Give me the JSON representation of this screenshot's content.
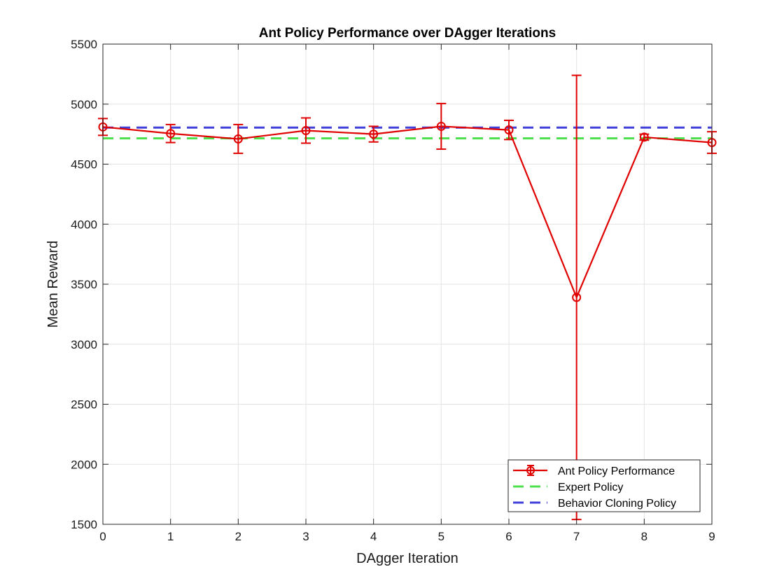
{
  "chart_data": {
    "type": "line",
    "title": "Ant Policy Performance over DAgger Iterations",
    "xlabel": "DAgger Iteration",
    "ylabel": "Mean Reward",
    "xlim": [
      0,
      9
    ],
    "ylim": [
      1500,
      5500
    ],
    "xticks": [
      0,
      1,
      2,
      3,
      4,
      5,
      6,
      7,
      8,
      9
    ],
    "yticks": [
      1500,
      2000,
      2500,
      3000,
      3500,
      4000,
      4500,
      5000,
      5500
    ],
    "grid": true,
    "legend_position": "bottom-right",
    "series": [
      {
        "name": "Ant Policy Performance",
        "style": "solid line with circle markers and error bars",
        "color": "#e00000",
        "x": [
          0,
          1,
          2,
          3,
          4,
          5,
          6,
          7,
          8,
          9
        ],
        "y": [
          4810,
          4755,
          4710,
          4780,
          4750,
          4815,
          4785,
          3390,
          4725,
          4680
        ],
        "error": [
          70,
          75,
          120,
          105,
          65,
          190,
          80,
          1850,
          25,
          90
        ]
      },
      {
        "name": "Expert Policy",
        "style": "dashed",
        "color": "#4ce04c",
        "x": [
          0,
          9
        ],
        "y": [
          4715,
          4715
        ]
      },
      {
        "name": "Behavior Cloning Policy",
        "style": "dashed",
        "color": "#4040d8",
        "x": [
          0,
          9
        ],
        "y": [
          4805,
          4805
        ]
      }
    ]
  }
}
